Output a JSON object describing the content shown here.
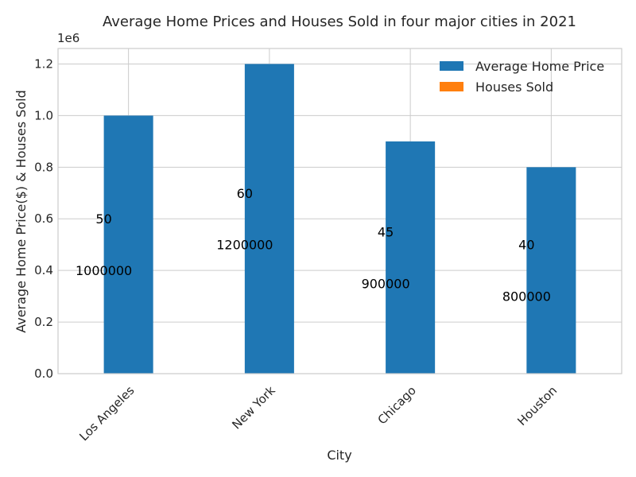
{
  "chart_data": {
    "type": "bar",
    "title": "Average Home Prices and Houses Sold in four major cities in 2021",
    "xlabel": "City",
    "ylabel": "Average Home Price($) & Houses Sold",
    "offset_label": "1e6",
    "categories": [
      "Los Angeles",
      "New York",
      "Chicago",
      "Houston"
    ],
    "ylim": [
      0,
      1260000
    ],
    "yticks": [
      0,
      200000,
      400000,
      600000,
      800000,
      1000000,
      1200000
    ],
    "ytick_labels": [
      "0.0",
      "0.2",
      "0.4",
      "0.6",
      "0.8",
      "1.0",
      "1.2"
    ],
    "grid": true,
    "legend_position": "top-right",
    "series": [
      {
        "name": "Average Home Price",
        "color": "#1f77b4",
        "values": [
          1000000,
          1200000,
          900000,
          800000
        ]
      },
      {
        "name": "Houses Sold",
        "color": "#ff7f0e",
        "values": [
          50,
          60,
          45,
          40
        ]
      }
    ],
    "annotations": [
      {
        "text": "1000000",
        "category": "Los Angeles",
        "y": 400000
      },
      {
        "text": "50",
        "category": "Los Angeles",
        "y": 600000
      },
      {
        "text": "1200000",
        "category": "New York",
        "y": 500000
      },
      {
        "text": "60",
        "category": "New York",
        "y": 700000
      },
      {
        "text": "900000",
        "category": "Chicago",
        "y": 350000
      },
      {
        "text": "45",
        "category": "Chicago",
        "y": 550000
      },
      {
        "text": "800000",
        "category": "Houston",
        "y": 300000
      },
      {
        "text": "40",
        "category": "Houston",
        "y": 500000
      }
    ]
  }
}
